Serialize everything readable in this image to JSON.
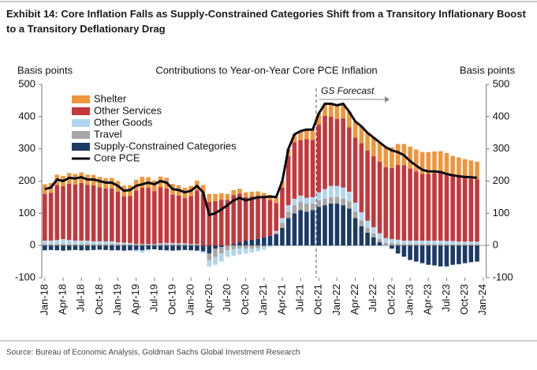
{
  "title": "Exhibit 14: Core Inflation Falls as Supply-Constrained Categories Shift from a Transitory Inflationary Boost to a Transitory Deflationary Drag",
  "source": "Source: Bureau of Economic Analysis, Goldman Sachs Global Investment Research",
  "chart_data": {
    "type": "bar",
    "title": "Contributions to Year-on-Year Core PCE Inflation",
    "y_label": "Basis points",
    "y2_label": "Basis points",
    "annotation": "GS Forecast",
    "categories": [
      "Jan-18",
      null,
      null,
      "Apr-18",
      null,
      null,
      "Jul-18",
      null,
      null,
      "Oct-18",
      null,
      null,
      "Jan-19",
      null,
      null,
      "Apr-19",
      null,
      null,
      "Jul-19",
      null,
      null,
      "Oct-19",
      null,
      null,
      "Jan-20",
      null,
      null,
      "Apr-20",
      null,
      null,
      "Jul-20",
      null,
      null,
      "Oct-20",
      null,
      null,
      "Jan-21",
      null,
      null,
      "Apr-21",
      null,
      null,
      "Jul-21",
      null,
      null,
      "Oct-21",
      null,
      null,
      "Jan-22",
      null,
      null,
      "Apr-22",
      null,
      null,
      "Jul-22",
      null,
      null,
      "Oct-22",
      null,
      null,
      "Jan-23",
      null,
      null,
      "Apr-23",
      null,
      null,
      "Jul-23",
      null,
      null,
      "Oct-23",
      null,
      null,
      "Jan-24"
    ],
    "series": [
      {
        "name": "Shelter",
        "color": "#f0953c",
        "values": [
          30,
          30,
          32,
          32,
          33,
          33,
          33,
          32,
          32,
          32,
          32,
          33,
          33,
          33,
          33,
          33,
          33,
          33,
          33,
          33,
          33,
          33,
          32,
          32,
          32,
          30,
          28,
          25,
          22,
          20,
          18,
          16,
          15,
          15,
          15,
          15,
          15,
          16,
          18,
          20,
          22,
          25,
          28,
          30,
          32,
          35,
          38,
          40,
          42,
          45,
          48,
          50,
          52,
          55,
          58,
          60,
          62,
          64,
          65,
          66,
          68,
          68,
          68,
          68,
          67,
          66,
          64,
          62,
          60,
          58,
          56,
          55,
          null
        ]
      },
      {
        "name": "Other Services",
        "color": "#c3383b",
        "values": [
          145,
          149,
          171,
          164,
          175,
          174,
          179,
          173,
          174,
          168,
          164,
          164,
          157,
          144,
          146,
          166,
          175,
          174,
          164,
          174,
          169,
          150,
          148,
          140,
          148,
          166,
          160,
          135,
          138,
          142,
          142,
          151,
          151,
          135,
          134,
          133,
          123,
          111,
          87,
          95,
          153,
          175,
          172,
          182,
          178,
          210,
          227,
          215,
          208,
          215,
          200,
          202,
          215,
          218,
          220,
          222,
          220,
          221,
          232,
          234,
          224,
          215,
          207,
          207,
          210,
          212,
          209,
          202,
          201,
          198,
          196,
          193,
          null
        ]
      },
      {
        "name": "Other Goods",
        "color": "#b1d5ef",
        "values": [
          10,
          10,
          12,
          15,
          12,
          10,
          10,
          10,
          8,
          8,
          8,
          8,
          5,
          4,
          3,
          -5,
          -8,
          -5,
          0,
          2,
          3,
          3,
          2,
          2,
          0,
          0,
          -5,
          -20,
          -25,
          -25,
          -20,
          -20,
          -18,
          -15,
          -12,
          -10,
          -8,
          -5,
          5,
          15,
          20,
          20,
          20,
          18,
          20,
          25,
          30,
          35,
          35,
          35,
          30,
          28,
          25,
          22,
          20,
          18,
          15,
          12,
          12,
          10,
          10,
          10,
          10,
          10,
          10,
          10,
          10,
          10,
          8,
          8,
          8,
          8,
          null
        ]
      },
      {
        "name": "Travel",
        "color": "#a6a6a6",
        "values": [
          5,
          5,
          5,
          5,
          5,
          5,
          5,
          5,
          5,
          5,
          5,
          5,
          5,
          5,
          5,
          5,
          5,
          5,
          5,
          5,
          5,
          5,
          5,
          5,
          5,
          5,
          0,
          -20,
          -25,
          -20,
          -15,
          -12,
          -10,
          -10,
          -10,
          -8,
          -5,
          0,
          5,
          15,
          20,
          25,
          25,
          25,
          20,
          20,
          20,
          20,
          20,
          20,
          22,
          20,
          18,
          15,
          12,
          10,
          8,
          8,
          6,
          5,
          5,
          5,
          5,
          5,
          5,
          5,
          4,
          4,
          4,
          4,
          4,
          4,
          null
        ]
      },
      {
        "name": "Supply-Constrained Categories",
        "color": "#1b3a64",
        "values": [
          -15,
          -14,
          -15,
          -16,
          -15,
          -14,
          -15,
          -15,
          -14,
          -13,
          -14,
          -15,
          -15,
          -16,
          -15,
          -14,
          -15,
          -12,
          -12,
          -14,
          -15,
          -16,
          -15,
          -14,
          -15,
          -16,
          -18,
          -25,
          -10,
          -5,
          0,
          5,
          10,
          15,
          18,
          20,
          25,
          30,
          35,
          55,
          85,
          100,
          110,
          105,
          110,
          120,
          125,
          130,
          130,
          125,
          115,
          85,
          60,
          40,
          25,
          10,
          0,
          -10,
          -25,
          -35,
          -45,
          -50,
          -55,
          -60,
          -62,
          -65,
          -65,
          -60,
          -58,
          -55,
          -52,
          -50,
          null
        ]
      },
      {
        "name": "Core PCE",
        "color": "#0a0a14",
        "type": "line",
        "values": [
          175,
          180,
          205,
          200,
          210,
          208,
          212,
          205,
          205,
          200,
          195,
          195,
          185,
          170,
          172,
          185,
          190,
          195,
          190,
          200,
          195,
          175,
          172,
          165,
          170,
          185,
          165,
          95,
          100,
          112,
          125,
          140,
          148,
          140,
          145,
          150,
          150,
          152,
          150,
          200,
          300,
          345,
          355,
          360,
          360,
          410,
          440,
          440,
          435,
          440,
          415,
          385,
          370,
          350,
          335,
          320,
          305,
          295,
          290,
          280,
          262,
          248,
          235,
          230,
          230,
          228,
          222,
          218,
          215,
          213,
          212,
          210,
          null
        ]
      }
    ],
    "ylim": [
      -100,
      500
    ],
    "yticks": [
      -100,
      0,
      100,
      200,
      300,
      400,
      500
    ],
    "y2lim": [
      -100,
      500
    ],
    "y2ticks": [
      -100,
      0,
      100,
      200,
      300,
      400,
      500
    ]
  }
}
